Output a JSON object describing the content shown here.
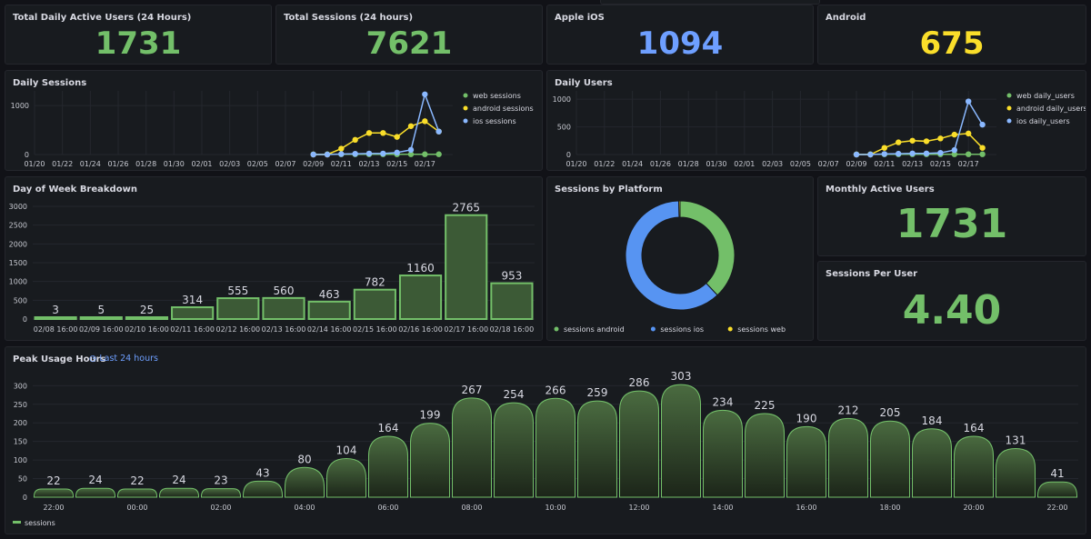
{
  "colors": {
    "green": "#73bf69",
    "yellow": "#fade2a",
    "blue": "#8ab8ff",
    "blue_ring": "#5794f2"
  },
  "stats": [
    {
      "title": "Total Daily Active Users (24 Hours)",
      "value": "1731",
      "color": "#73bf69"
    },
    {
      "title": "Total Sessions (24 hours)",
      "value": "7621",
      "color": "#73bf69"
    },
    {
      "title": "Apple iOS",
      "value": "1094",
      "color": "#6e9fff"
    },
    {
      "title": "Android",
      "value": "675",
      "color": "#fade2a"
    }
  ],
  "monthly": {
    "title": "Monthly Active Users",
    "value": "1731"
  },
  "per_user": {
    "title": "Sessions Per User",
    "value": "4.40"
  },
  "peak": {
    "title": "Peak Usage Hours",
    "time_range": "Last 24 hours"
  },
  "chart_data": [
    {
      "id": "daily_sessions",
      "type": "line",
      "title": "Daily Sessions",
      "x_ticks": [
        "01/20",
        "01/22",
        "01/24",
        "01/26",
        "01/28",
        "01/30",
        "02/01",
        "02/03",
        "02/05",
        "02/07",
        "02/09",
        "02/11",
        "02/13",
        "02/15",
        "02/17"
      ],
      "x_range": [
        "01/20",
        "02/19"
      ],
      "y_ticks": [
        0,
        1000
      ],
      "ylim": [
        0,
        1300
      ],
      "legend_position": "right",
      "x": [
        "02/09",
        "02/10",
        "02/11",
        "02/12",
        "02/13",
        "02/14",
        "02/15",
        "02/16",
        "02/17",
        "02/18"
      ],
      "series": [
        {
          "name": "web sessions",
          "color": "#73bf69",
          "values": [
            3,
            5,
            5,
            5,
            5,
            5,
            5,
            5,
            5,
            5
          ]
        },
        {
          "name": "android sessions",
          "color": "#fade2a",
          "values": [
            0,
            0,
            120,
            300,
            440,
            440,
            360,
            580,
            680,
            470
          ]
        },
        {
          "name": "ios sessions",
          "color": "#8ab8ff",
          "values": [
            0,
            0,
            10,
            15,
            20,
            20,
            40,
            95,
            1230,
            470
          ]
        }
      ]
    },
    {
      "id": "daily_users",
      "type": "line",
      "title": "Daily Users",
      "x_ticks": [
        "01/20",
        "01/22",
        "01/24",
        "01/26",
        "01/28",
        "01/30",
        "02/01",
        "02/03",
        "02/05",
        "02/07",
        "02/09",
        "02/11",
        "02/13",
        "02/15",
        "02/17"
      ],
      "x_range": [
        "01/20",
        "02/19"
      ],
      "y_ticks": [
        0,
        500,
        1000
      ],
      "ylim": [
        0,
        1150
      ],
      "legend_position": "right",
      "x": [
        "02/09",
        "02/10",
        "02/11",
        "02/12",
        "02/13",
        "02/14",
        "02/15",
        "02/16",
        "02/17",
        "02/18"
      ],
      "series": [
        {
          "name": "web daily_users",
          "color": "#73bf69",
          "values": [
            3,
            5,
            5,
            5,
            5,
            5,
            5,
            5,
            5,
            5
          ]
        },
        {
          "name": "android daily_users",
          "color": "#fade2a",
          "values": [
            0,
            0,
            120,
            220,
            250,
            240,
            290,
            360,
            380,
            120
          ]
        },
        {
          "name": "ios daily_users",
          "color": "#8ab8ff",
          "values": [
            0,
            0,
            10,
            15,
            20,
            20,
            30,
            80,
            960,
            540
          ]
        }
      ]
    },
    {
      "id": "day_of_week",
      "type": "bar",
      "title": "Day of Week Breakdown",
      "categories": [
        "02/08 16:00",
        "02/09 16:00",
        "02/10 16:00",
        "02/11 16:00",
        "02/12 16:00",
        "02/13 16:00",
        "02/14 16:00",
        "02/15 16:00",
        "02/16 16:00",
        "02/17 16:00",
        "02/18 16:00"
      ],
      "values": [
        3,
        5,
        25,
        314,
        555,
        560,
        463,
        782,
        1160,
        2765,
        953
      ],
      "y_ticks": [
        0,
        500,
        1000,
        1500,
        2000,
        2500,
        3000
      ],
      "ylim": [
        0,
        3000
      ],
      "color": "#73bf69"
    },
    {
      "id": "platform",
      "type": "pie",
      "title": "Sessions by Platform",
      "labels": [
        "sessions android",
        "sessions ios",
        "sessions web"
      ],
      "values": [
        675,
        1094,
        7
      ],
      "colors": [
        "#73bf69",
        "#5794f2",
        "#fade2a"
      ],
      "legend_position": "bottom"
    },
    {
      "id": "peak_hours",
      "type": "bar",
      "title": "Peak Usage Hours",
      "values": [
        22,
        24,
        22,
        24,
        23,
        43,
        80,
        104,
        164,
        199,
        267,
        254,
        266,
        259,
        286,
        303,
        234,
        225,
        190,
        212,
        205,
        184,
        164,
        131,
        41
      ],
      "x_ticks": [
        "22:00",
        "00:00",
        "02:00",
        "04:00",
        "06:00",
        "08:00",
        "10:00",
        "12:00",
        "14:00",
        "16:00",
        "18:00",
        "20:00",
        "22:00"
      ],
      "y_ticks": [
        0,
        50,
        100,
        150,
        200,
        250,
        300
      ],
      "ylim": [
        0,
        340
      ],
      "legend": [
        "sessions"
      ],
      "color": "#73bf69"
    }
  ]
}
